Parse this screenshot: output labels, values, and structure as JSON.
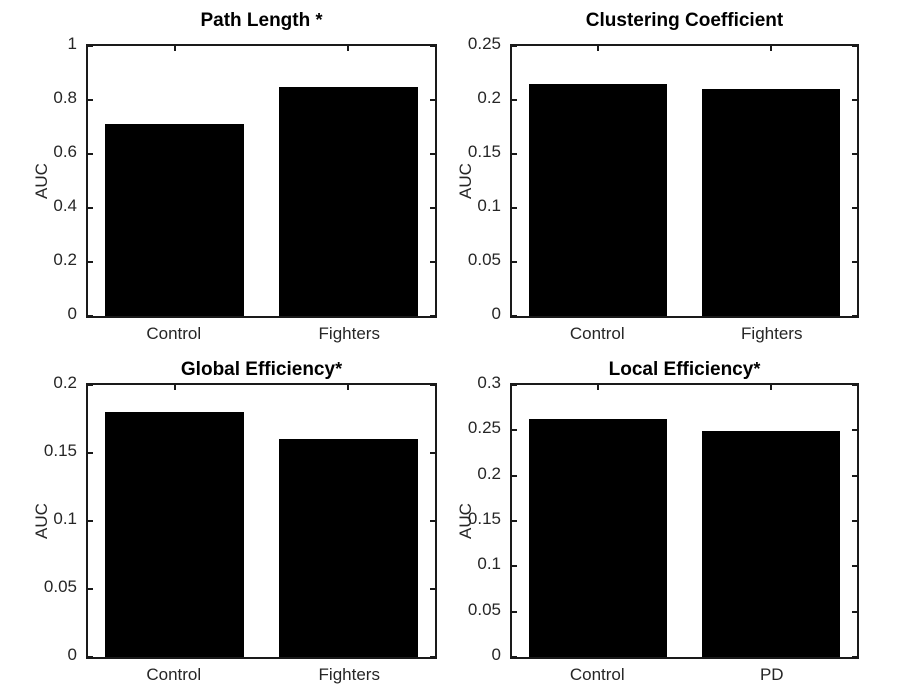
{
  "colors": {
    "background": "#ffffff",
    "bar": "#000000",
    "axis": "#1a1a1a",
    "tick_label": "#262626",
    "title": "#000000"
  },
  "chart_data": [
    {
      "type": "bar",
      "title": "Path Length ",
      "significance_marker": "*",
      "xlabel": "",
      "ylabel": "AUC",
      "categories": [
        "Control",
        "Fighters"
      ],
      "values": [
        0.71,
        0.85
      ],
      "ylim": [
        0,
        1
      ],
      "yticks": [
        "0",
        "0.2",
        "0.4",
        "0.6",
        "0.8",
        "1"
      ],
      "grid": false,
      "legend": false
    },
    {
      "type": "bar",
      "title": "Clustering Coefficient",
      "significance_marker": "",
      "xlabel": "",
      "ylabel": "AUC",
      "categories": [
        "Control",
        "Fighters"
      ],
      "values": [
        0.215,
        0.21
      ],
      "ylim": [
        0,
        0.25
      ],
      "yticks": [
        "0",
        "0.05",
        "0.1",
        "0.15",
        "0.2",
        "0.25"
      ],
      "grid": false,
      "legend": false
    },
    {
      "type": "bar",
      "title": "Global Efficiency",
      "significance_marker": "*",
      "xlabel": "",
      "ylabel": "AUC",
      "categories": [
        "Control",
        "Fighters"
      ],
      "values": [
        0.18,
        0.16
      ],
      "ylim": [
        0,
        0.2
      ],
      "yticks": [
        "0",
        "0.05",
        "0.1",
        "0.15",
        "0.2"
      ],
      "grid": false,
      "legend": false
    },
    {
      "type": "bar",
      "title": "Local Efficiency",
      "significance_marker": "*",
      "xlabel": "",
      "ylabel": "AUC",
      "categories": [
        "Control",
        "PD"
      ],
      "values": [
        0.262,
        0.249
      ],
      "ylim": [
        0,
        0.3
      ],
      "yticks": [
        "0",
        "0.05",
        "0.1",
        "0.15",
        "0.2",
        "0.25",
        "0.3"
      ],
      "grid": false,
      "legend": false
    }
  ]
}
